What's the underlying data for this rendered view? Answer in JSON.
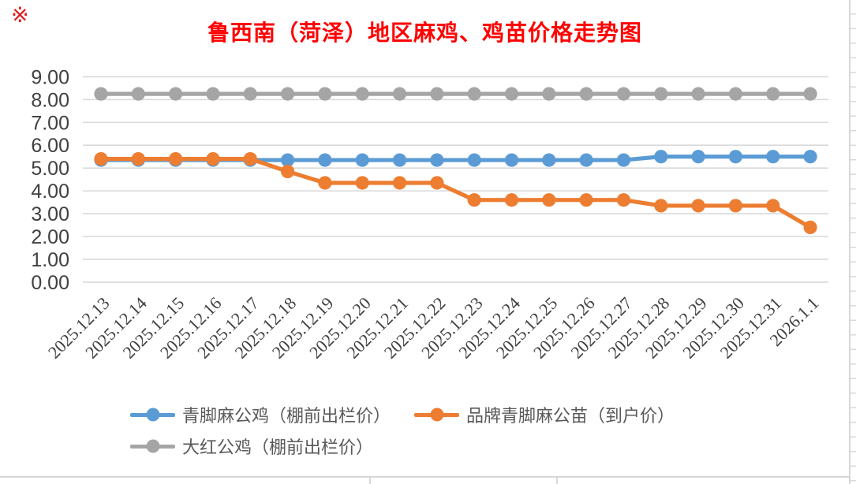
{
  "corner_mark": "※",
  "chart_data": {
    "type": "line",
    "title": "鲁西南（菏泽）地区麻鸡、鸡苗价格走势图",
    "title_color": "#FF0000",
    "categories": [
      "2025.12.13",
      "2025.12.14",
      "2025.12.15",
      "2025.12.16",
      "2025.12.17",
      "2025.12.18",
      "2025.12.19",
      "2025.12.20",
      "2025.12.21",
      "2025.12.22",
      "2025.12.23",
      "2025.12.24",
      "2025.12.25",
      "2025.12.26",
      "2025.12.27",
      "2025.12.28",
      "2025.12.29",
      "2025.12.30",
      "2025.12.31",
      "2026.1.1"
    ],
    "series": [
      {
        "name": "青脚麻公鸡（棚前出栏价）",
        "color": "#5B9BD5",
        "values": [
          5.35,
          5.35,
          5.35,
          5.35,
          5.35,
          5.35,
          5.35,
          5.35,
          5.35,
          5.35,
          5.35,
          5.35,
          5.35,
          5.35,
          5.35,
          5.5,
          5.5,
          5.5,
          5.5,
          5.5
        ]
      },
      {
        "name": "品牌青脚麻公苗（到户价）",
        "color": "#ED7D31",
        "values": [
          5.4,
          5.4,
          5.4,
          5.4,
          5.4,
          4.85,
          4.35,
          4.35,
          4.35,
          4.35,
          3.6,
          3.6,
          3.6,
          3.6,
          3.6,
          3.35,
          3.35,
          3.35,
          3.35,
          2.4
        ]
      },
      {
        "name": "大红公鸡（棚前出栏价）",
        "color": "#A5A5A5",
        "values": [
          8.25,
          8.25,
          8.25,
          8.25,
          8.25,
          8.25,
          8.25,
          8.25,
          8.25,
          8.25,
          8.25,
          8.25,
          8.25,
          8.25,
          8.25,
          8.25,
          8.25,
          8.25,
          8.25,
          8.25
        ]
      }
    ],
    "ylim": [
      0,
      9
    ],
    "ytick_step": 1,
    "ytick_format": "0.00",
    "ytick_labels": [
      "0.00",
      "1.00",
      "2.00",
      "3.00",
      "4.00",
      "5.00",
      "6.00",
      "7.00",
      "8.00",
      "9.00"
    ],
    "xlabel": "",
    "ylabel": "",
    "grid": "horizontal",
    "gridline_color": "#D9D9D9",
    "axis_text_color": "#404040",
    "legend_text_color": "#595959",
    "legend_position": "bottom-left-two-rows",
    "x_label_rotation_deg": 45
  }
}
